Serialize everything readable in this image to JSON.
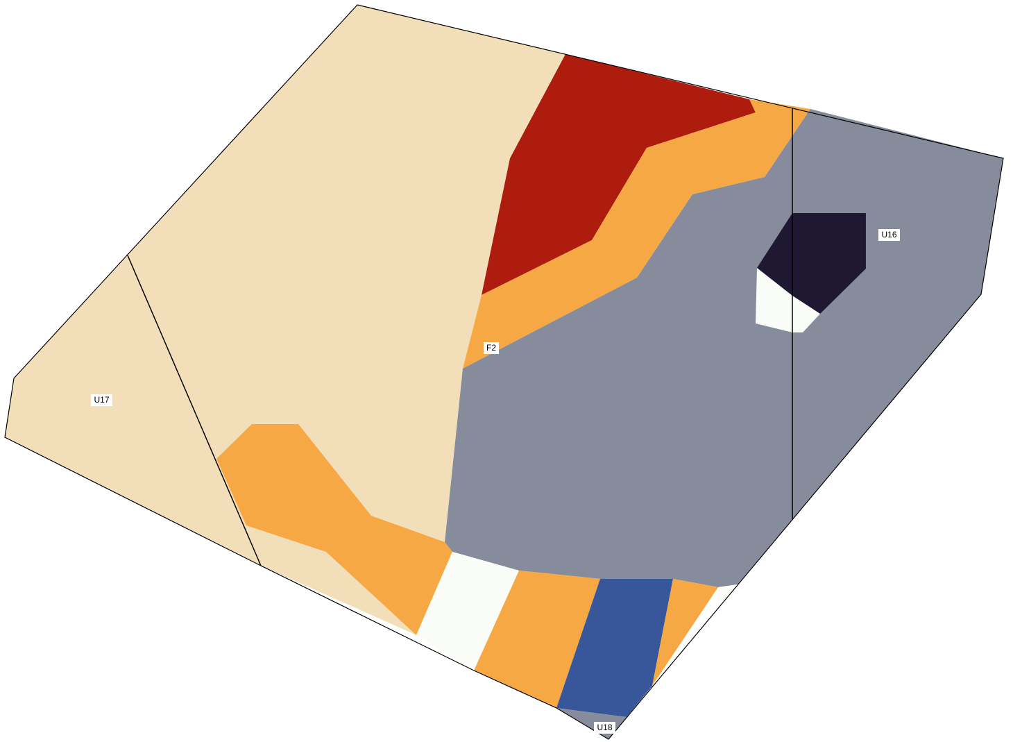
{
  "map": {
    "colors": {
      "tan": "#f2dfb9",
      "dark_red": "#ae1c0e",
      "orange": "#f6a845",
      "slate_gray": "#878c9c",
      "dark_navy": "#1f1832",
      "off_white": "#fafcf8",
      "blue": "#38579a",
      "outline": "#000000"
    },
    "labels": {
      "u17": "U17",
      "u16": "U16",
      "u18": "U18",
      "f2": "F2"
    }
  }
}
